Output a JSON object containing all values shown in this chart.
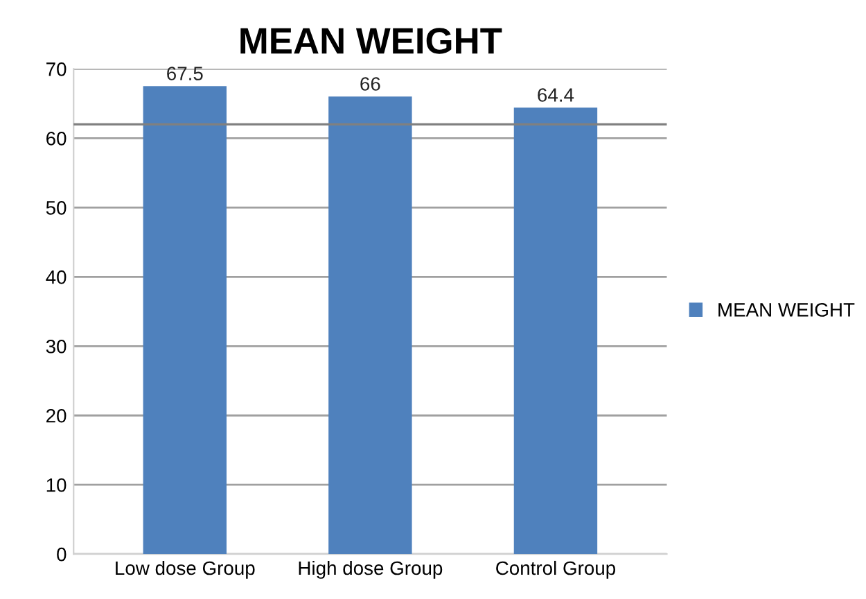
{
  "chart_data": {
    "type": "bar",
    "title": "MEAN WEIGHT",
    "categories": [
      "Low dose Group",
      "High dose Group",
      "Control Group"
    ],
    "series": [
      {
        "name": "MEAN WEIGHT",
        "color": "#4f81bd",
        "values": [
          67.5,
          66,
          64.4
        ]
      }
    ],
    "ylim": [
      0,
      70
    ],
    "yticks": [
      0,
      10,
      20,
      30,
      40,
      50,
      60,
      70
    ],
    "grid": "y",
    "legend": "right",
    "data_labels": true,
    "ref_lines": [
      {
        "axis": "y",
        "value": 62,
        "color": "#808080"
      }
    ]
  }
}
